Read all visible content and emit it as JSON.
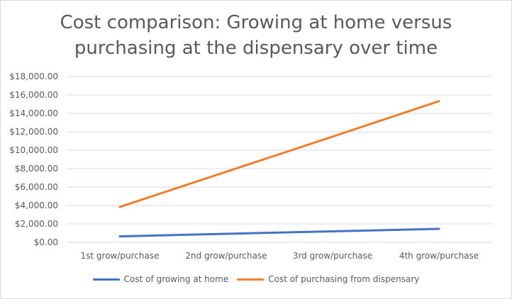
{
  "chart_data": {
    "type": "line",
    "title_lines": [
      "Cost comparison: Growing at home versus",
      "purchasing at the dispensary over time"
    ],
    "categories": [
      "1st grow/purchase",
      "2nd grow/purchase",
      "3rd grow/purchase",
      "4th grow/purchase"
    ],
    "y_ticks": [
      "$0.00",
      "$2,000.00",
      "$4,000.00",
      "$6,000.00",
      "$8,000.00",
      "$10,000.00",
      "$12,000.00",
      "$14,000.00",
      "$16,000.00",
      "$18,000.00"
    ],
    "ylim": [
      0,
      18000
    ],
    "y_step": 2000,
    "grid": true,
    "legend_position": "bottom",
    "series": [
      {
        "name": "Cost of growing at home",
        "color": "#4472c4",
        "values": [
          650,
          920,
          1190,
          1460
        ]
      },
      {
        "name": "Cost of purchasing from dispensary",
        "color": "#ed7d31",
        "values": [
          3840,
          7660,
          11480,
          15320
        ]
      }
    ]
  }
}
